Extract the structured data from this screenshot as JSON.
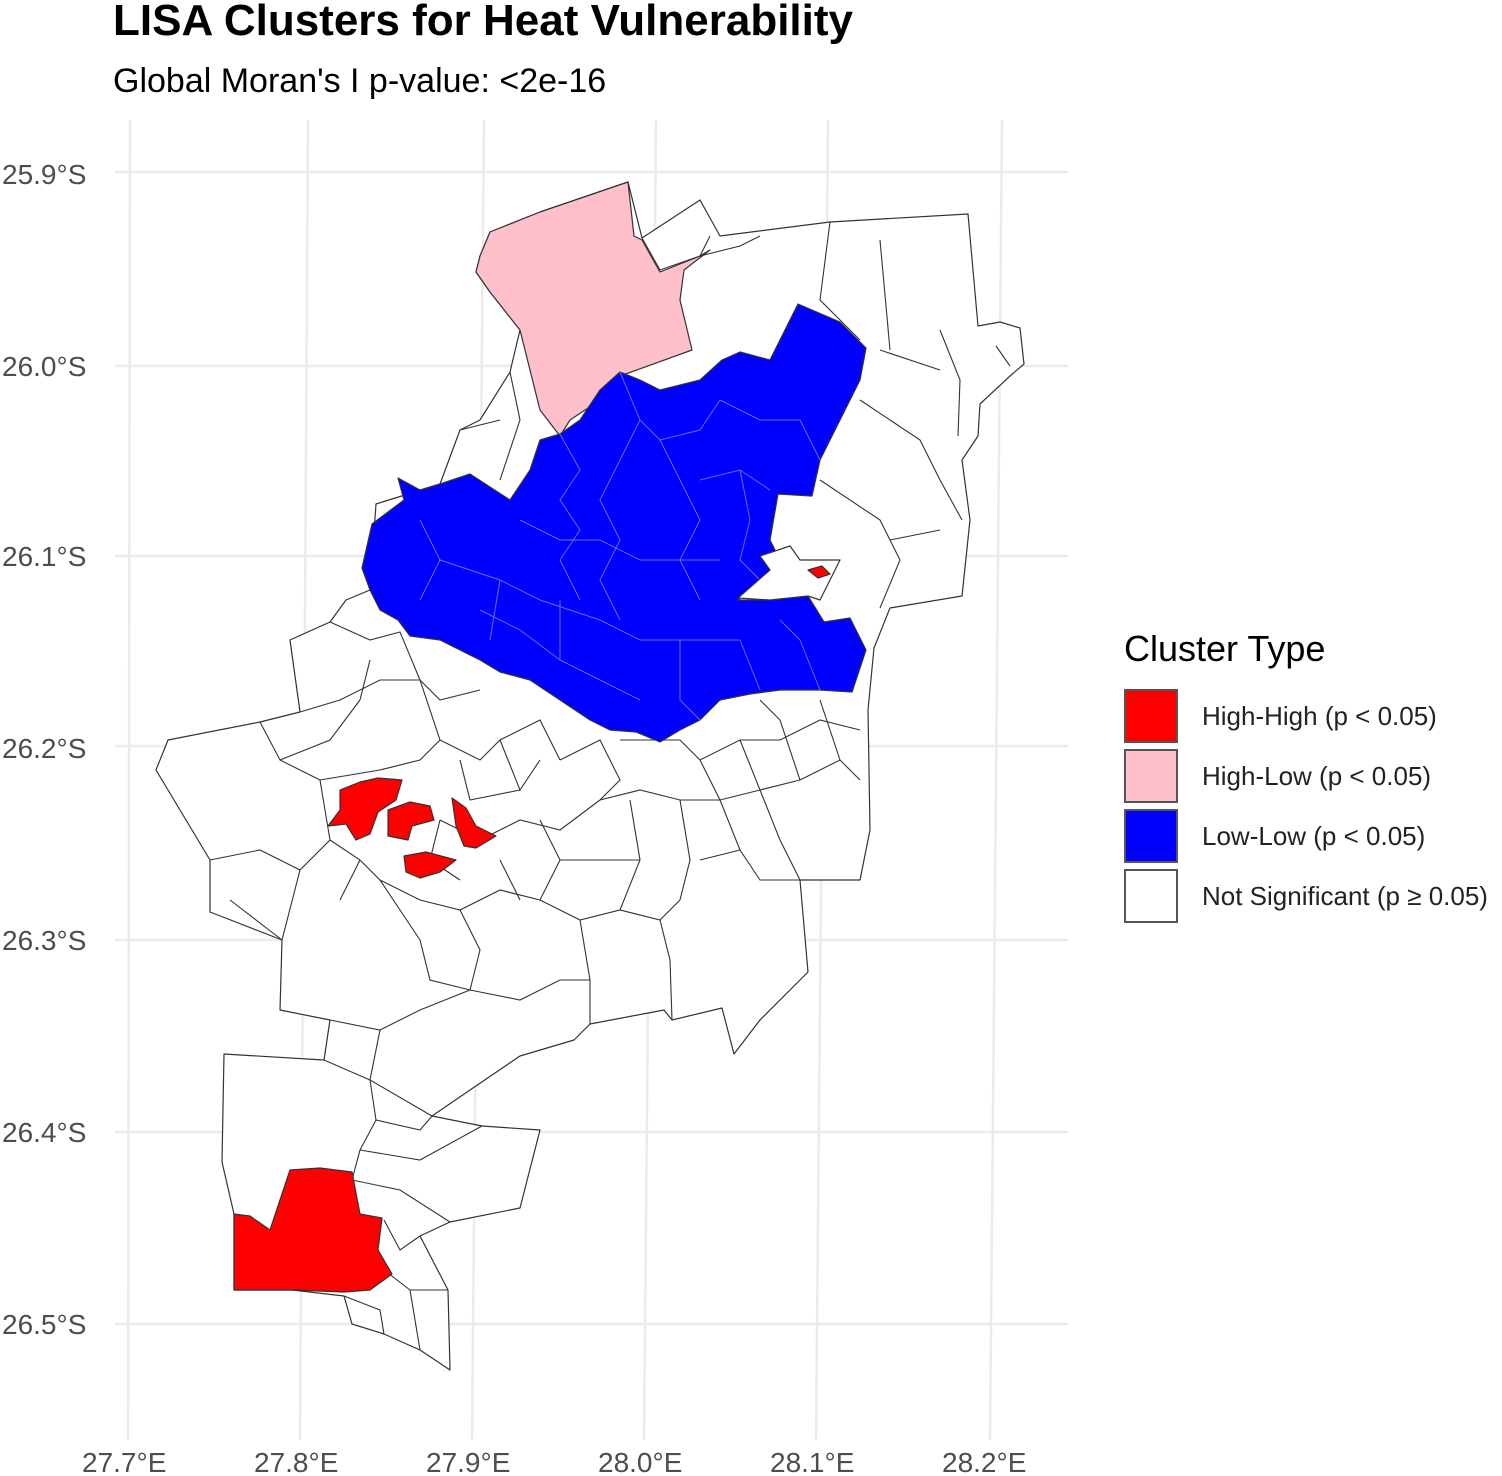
{
  "map": {
    "title": "LISA Clusters for Heat Vulnerability",
    "subtitle": "Global Moran's I p-value: <2e-16",
    "lat_ticks": [
      "25.9°S",
      "26.0°S",
      "26.1°S",
      "26.2°S",
      "26.3°S",
      "26.4°S",
      "26.5°S"
    ],
    "lon_ticks": [
      "27.7°E",
      "27.8°E",
      "27.9°E",
      "28.0°E",
      "28.1°E",
      "28.2°E"
    ],
    "legend": {
      "title": "Cluster Type",
      "items": [
        {
          "label": "High-High (p < 0.05)",
          "color": "#ff0000"
        },
        {
          "label": "High-Low (p < 0.05)",
          "color": "#ffc0cb"
        },
        {
          "label": "Low-Low (p < 0.05)",
          "color": "#0000ff"
        },
        {
          "label": "Not Significant (p ≥ 0.05)",
          "color": "#ffffff"
        }
      ]
    }
  },
  "chart_data": {
    "type": "choropleth",
    "title": "LISA Clusters for Heat Vulnerability",
    "subtitle": "Global Moran's I p-value: <2e-16",
    "xlim": [
      27.7,
      28.2
    ],
    "ylim": [
      -26.5,
      -25.9
    ],
    "x_ticks": [
      27.7,
      27.8,
      27.9,
      28.0,
      28.1,
      28.2
    ],
    "y_ticks": [
      -25.9,
      -26.0,
      -26.1,
      -26.2,
      -26.3,
      -26.4,
      -26.5
    ],
    "legend_placement": "right",
    "grid": true,
    "categories": [
      "High-High (p < 0.05)",
      "High-Low (p < 0.05)",
      "Low-Low (p < 0.05)",
      "Not Significant (p ≥ 0.05)"
    ]
  }
}
